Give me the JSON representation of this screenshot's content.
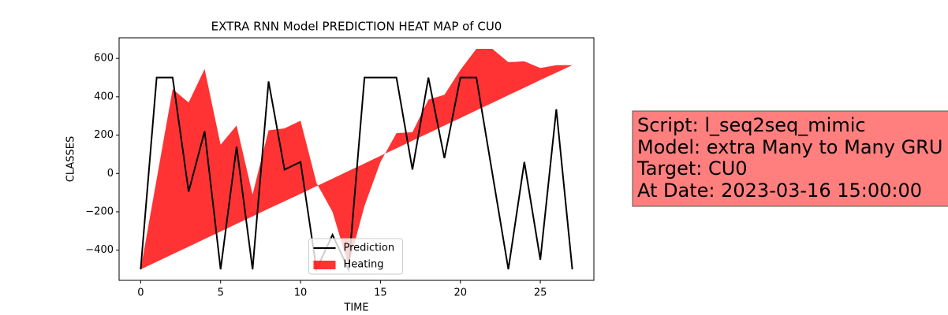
{
  "chart_data": {
    "type": "line",
    "title": "EXTRA RNN Model PREDICTION HEAT MAP of CU0",
    "x_label": "TIME",
    "y_label": "CLASSES",
    "x": [
      0,
      1,
      2,
      3,
      4,
      5,
      6,
      7,
      8,
      9,
      10,
      11,
      12,
      13,
      14,
      15,
      16,
      17,
      18,
      19,
      20,
      21,
      22,
      23,
      24,
      25,
      26,
      27
    ],
    "series": [
      {
        "name": "Prediction",
        "color": "#000000",
        "values": [
          -500,
          500,
          500,
          -95,
          220,
          -500,
          140,
          -500,
          480,
          20,
          60,
          -500,
          -320,
          -500,
          500,
          500,
          500,
          20,
          500,
          80,
          500,
          500,
          0,
          -500,
          60,
          -450,
          335,
          -500
        ]
      },
      {
        "name": "Heating",
        "color": "#ff0000",
        "values": [
          -500,
          -30,
          440,
          370,
          545,
          150,
          250,
          -110,
          225,
          235,
          275,
          -50,
          -200,
          -480,
          -170,
          60,
          210,
          215,
          385,
          410,
          540,
          650,
          650,
          580,
          585,
          550,
          565,
          565
        ],
        "lower": [
          -500,
          -461,
          -421,
          -382,
          -342,
          -303,
          -263,
          -224,
          -184,
          -145,
          -106,
          -66,
          -27,
          13,
          52,
          92,
          131,
          171,
          210,
          250,
          289,
          329,
          368,
          408,
          447,
          487,
          526,
          565
        ]
      }
    ],
    "xlim": [
      -1.35,
      28.35
    ],
    "xticks": [
      0,
      5,
      10,
      15,
      20,
      25
    ],
    "ylim": [
      -557.5,
      707.5
    ],
    "yticks": [
      {
        "value": -400,
        "label": "−400"
      },
      {
        "value": -200,
        "label": "−200"
      },
      0,
      200,
      400,
      600
    ],
    "legend": "lower center",
    "annotation": [
      "Script: l_seq2seq_mimic",
      "Model: extra Many to Many GRU",
      "Target: CU0",
      "At Date: 2023-03-16 15:00:00"
    ]
  }
}
